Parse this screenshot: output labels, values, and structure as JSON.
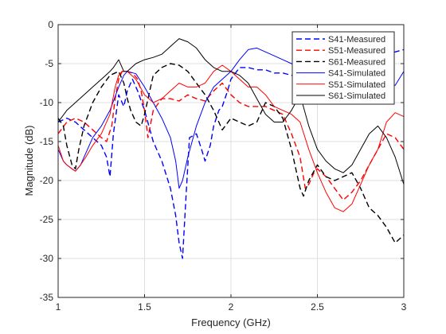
{
  "chart_data": {
    "type": "line",
    "xlabel": "Frequency (GHz)",
    "ylabel": "Magnitude (dB)",
    "xlim": [
      1,
      3
    ],
    "ylim": [
      -35,
      0
    ],
    "xticks": [
      1,
      1.5,
      2,
      2.5,
      3
    ],
    "xtick_labels": [
      "1",
      "1.5",
      "2",
      "2.5",
      "3"
    ],
    "yticks": [
      0,
      -5,
      -10,
      -15,
      -20,
      -25,
      -30,
      -35
    ],
    "ytick_labels": [
      "0",
      "-5",
      "-10",
      "-15",
      "-20",
      "-25",
      "-30",
      "-35"
    ],
    "grid": true,
    "legend_position": "top-right",
    "series": [
      {
        "name": "S41-Measured",
        "color": "#0000ff",
        "style": "dashed",
        "x": [
          1.0,
          1.05,
          1.1,
          1.15,
          1.2,
          1.25,
          1.28,
          1.3,
          1.32,
          1.35,
          1.38,
          1.4,
          1.43,
          1.46,
          1.5,
          1.55,
          1.6,
          1.65,
          1.68,
          1.7,
          1.72,
          1.74,
          1.76,
          1.8,
          1.83,
          1.85,
          1.88,
          1.9,
          1.93,
          1.95,
          1.98,
          2.0,
          2.05,
          2.1,
          2.15,
          2.2,
          2.25,
          2.3,
          2.35,
          2.4,
          2.45,
          2.5,
          2.55,
          2.6,
          2.65,
          2.7,
          2.75,
          2.8,
          2.85,
          2.9,
          2.95,
          3.0
        ],
        "y": [
          -12.5,
          -12.0,
          -12.5,
          -13.5,
          -14.5,
          -15.5,
          -17.0,
          -19.5,
          -14.0,
          -9.0,
          -10.5,
          -8.5,
          -7.0,
          -8.5,
          -11.0,
          -15.0,
          -17.5,
          -21.0,
          -24.5,
          -28.0,
          -30.0,
          -22.0,
          -14.5,
          -14.0,
          -16.0,
          -17.5,
          -15.5,
          -13.0,
          -11.0,
          -10.5,
          -8.5,
          -7.0,
          -5.5,
          -5.5,
          -5.8,
          -5.8,
          -6.2,
          -6.2,
          -6.5,
          -6.3,
          -6.5,
          -5.8,
          -4.5,
          -3.8,
          -4.3,
          -5.3,
          -4.0,
          -3.5,
          -4.2,
          -3.8,
          -3.5,
          -3.2
        ]
      },
      {
        "name": "S51-Measured",
        "color": "#ff0000",
        "style": "dashed",
        "x": [
          1.0,
          1.05,
          1.1,
          1.15,
          1.2,
          1.25,
          1.28,
          1.31,
          1.33,
          1.35,
          1.37,
          1.4,
          1.43,
          1.46,
          1.48,
          1.5,
          1.52,
          1.55,
          1.6,
          1.65,
          1.7,
          1.75,
          1.8,
          1.85,
          1.9,
          1.95,
          2.0,
          2.05,
          2.1,
          2.15,
          2.2,
          2.25,
          2.3,
          2.35,
          2.4,
          2.43,
          2.45,
          2.48,
          2.5,
          2.55,
          2.6,
          2.65,
          2.7,
          2.75,
          2.8,
          2.85,
          2.9,
          2.95,
          3.0
        ],
        "y": [
          -14.0,
          -12.5,
          -12.0,
          -12.5,
          -13.5,
          -14.5,
          -15.0,
          -13.0,
          -9.5,
          -7.0,
          -6.0,
          -6.0,
          -6.2,
          -7.0,
          -8.5,
          -11.0,
          -14.5,
          -11.0,
          -9.5,
          -9.5,
          -9.8,
          -9.0,
          -9.5,
          -9.8,
          -8.5,
          -7.5,
          -9.0,
          -10.0,
          -10.5,
          -10.5,
          -10.5,
          -11.0,
          -11.5,
          -14.0,
          -17.0,
          -21.0,
          -20.5,
          -19.0,
          -18.5,
          -19.5,
          -21.0,
          -22.5,
          -21.5,
          -20.0,
          -18.0,
          -16.0,
          -14.0,
          -14.5,
          -16.0
        ]
      },
      {
        "name": "S61-Measured",
        "color": "#000000",
        "style": "dashed",
        "x": [
          1.0,
          1.03,
          1.05,
          1.08,
          1.1,
          1.12,
          1.15,
          1.2,
          1.25,
          1.3,
          1.35,
          1.38,
          1.4,
          1.42,
          1.45,
          1.48,
          1.5,
          1.55,
          1.6,
          1.65,
          1.7,
          1.75,
          1.8,
          1.85,
          1.9,
          1.95,
          2.0,
          2.05,
          2.1,
          2.15,
          2.2,
          2.25,
          2.3,
          2.35,
          2.4,
          2.42,
          2.45,
          2.5,
          2.55,
          2.6,
          2.65,
          2.7,
          2.75,
          2.8,
          2.85,
          2.9,
          2.95,
          3.0
        ],
        "y": [
          -12.0,
          -13.0,
          -15.5,
          -18.0,
          -18.5,
          -16.0,
          -13.0,
          -10.0,
          -8.0,
          -6.5,
          -6.0,
          -7.5,
          -9.5,
          -11.0,
          -12.5,
          -13.0,
          -11.5,
          -6.5,
          -5.5,
          -5.0,
          -5.2,
          -6.0,
          -7.5,
          -9.0,
          -11.0,
          -13.5,
          -12.0,
          -12.5,
          -13.0,
          -12.5,
          -10.0,
          -10.5,
          -12.0,
          -16.0,
          -21.0,
          -22.0,
          -20.0,
          -18.0,
          -19.5,
          -20.0,
          -19.5,
          -19.0,
          -21.0,
          -23.5,
          -24.5,
          -26.0,
          -28.0,
          -27.0
        ]
      },
      {
        "name": "S41-Simulated",
        "color": "#0000ff",
        "style": "solid",
        "x": [
          1.0,
          1.03,
          1.05,
          1.08,
          1.1,
          1.13,
          1.16,
          1.2,
          1.25,
          1.3,
          1.35,
          1.38,
          1.4,
          1.45,
          1.5,
          1.55,
          1.6,
          1.65,
          1.68,
          1.7,
          1.72,
          1.75,
          1.8,
          1.85,
          1.9,
          1.95,
          2.0,
          2.05,
          2.1,
          2.15,
          2.2,
          2.25,
          2.3,
          2.35,
          2.4,
          2.45,
          2.5,
          2.55,
          2.6,
          2.65,
          2.7,
          2.75,
          2.8,
          2.85,
          2.9,
          2.95,
          3.0
        ],
        "y": [
          -16.0,
          -17.5,
          -18.0,
          -18.5,
          -18.8,
          -18.0,
          -16.5,
          -14.5,
          -13.0,
          -11.0,
          -8.0,
          -6.5,
          -6.0,
          -6.3,
          -8.0,
          -10.0,
          -12.0,
          -14.5,
          -17.5,
          -21.0,
          -20.0,
          -17.0,
          -13.0,
          -10.0,
          -8.0,
          -7.0,
          -6.0,
          -4.5,
          -3.2,
          -3.0,
          -3.5,
          -4.0,
          -4.5,
          -5.0,
          -5.5,
          -5.8,
          -6.0,
          -6.0,
          -6.2,
          -6.4,
          -6.6,
          -6.8,
          -7.0,
          -7.2,
          -7.5,
          -7.8,
          -6.0
        ]
      },
      {
        "name": "S51-Simulated",
        "color": "#ff0000",
        "style": "solid",
        "x": [
          1.0,
          1.03,
          1.05,
          1.08,
          1.1,
          1.13,
          1.16,
          1.2,
          1.25,
          1.3,
          1.33,
          1.35,
          1.37,
          1.4,
          1.45,
          1.5,
          1.55,
          1.6,
          1.65,
          1.7,
          1.75,
          1.8,
          1.85,
          1.9,
          1.95,
          2.0,
          2.05,
          2.1,
          2.15,
          2.2,
          2.25,
          2.3,
          2.35,
          2.4,
          2.45,
          2.5,
          2.55,
          2.6,
          2.65,
          2.7,
          2.75,
          2.8,
          2.85,
          2.9,
          2.95,
          3.0
        ],
        "y": [
          -15.5,
          -17.5,
          -18.0,
          -18.5,
          -18.8,
          -18.0,
          -17.0,
          -15.5,
          -14.0,
          -11.5,
          -8.0,
          -6.5,
          -6.0,
          -6.0,
          -7.0,
          -9.0,
          -10.0,
          -9.5,
          -8.5,
          -7.5,
          -8.0,
          -8.0,
          -7.5,
          -6.0,
          -5.2,
          -6.0,
          -7.0,
          -8.0,
          -8.0,
          -9.0,
          -10.5,
          -11.0,
          -11.5,
          -12.5,
          -16.0,
          -19.0,
          -21.5,
          -23.5,
          -24.0,
          -23.0,
          -20.5,
          -18.0,
          -16.0,
          -12.5,
          -11.3,
          -11.8
        ]
      },
      {
        "name": "S61-Simulated",
        "color": "#000000",
        "style": "solid",
        "x": [
          1.0,
          1.05,
          1.1,
          1.15,
          1.2,
          1.25,
          1.3,
          1.32,
          1.35,
          1.38,
          1.4,
          1.45,
          1.5,
          1.55,
          1.6,
          1.65,
          1.7,
          1.75,
          1.8,
          1.85,
          1.9,
          1.95,
          2.0,
          2.05,
          2.1,
          2.15,
          2.2,
          2.25,
          2.3,
          2.35,
          2.4,
          2.45,
          2.5,
          2.55,
          2.6,
          2.65,
          2.7,
          2.75,
          2.8,
          2.85,
          2.9,
          2.95,
          3.0
        ],
        "y": [
          -12.5,
          -11.0,
          -10.0,
          -9.0,
          -8.0,
          -7.0,
          -6.0,
          -5.5,
          -4.5,
          -6.0,
          -6.0,
          -5.0,
          -4.5,
          -4.2,
          -3.8,
          -2.8,
          -1.8,
          -2.2,
          -3.0,
          -4.5,
          -5.5,
          -6.0,
          -6.0,
          -6.5,
          -7.5,
          -9.5,
          -11.5,
          -12.5,
          -12.5,
          -11.0,
          -9.0,
          -13.0,
          -16.0,
          -17.5,
          -18.5,
          -19.0,
          -18.0,
          -16.0,
          -14.0,
          -13.0,
          -14.5,
          -17.0,
          -20.5
        ]
      }
    ]
  }
}
